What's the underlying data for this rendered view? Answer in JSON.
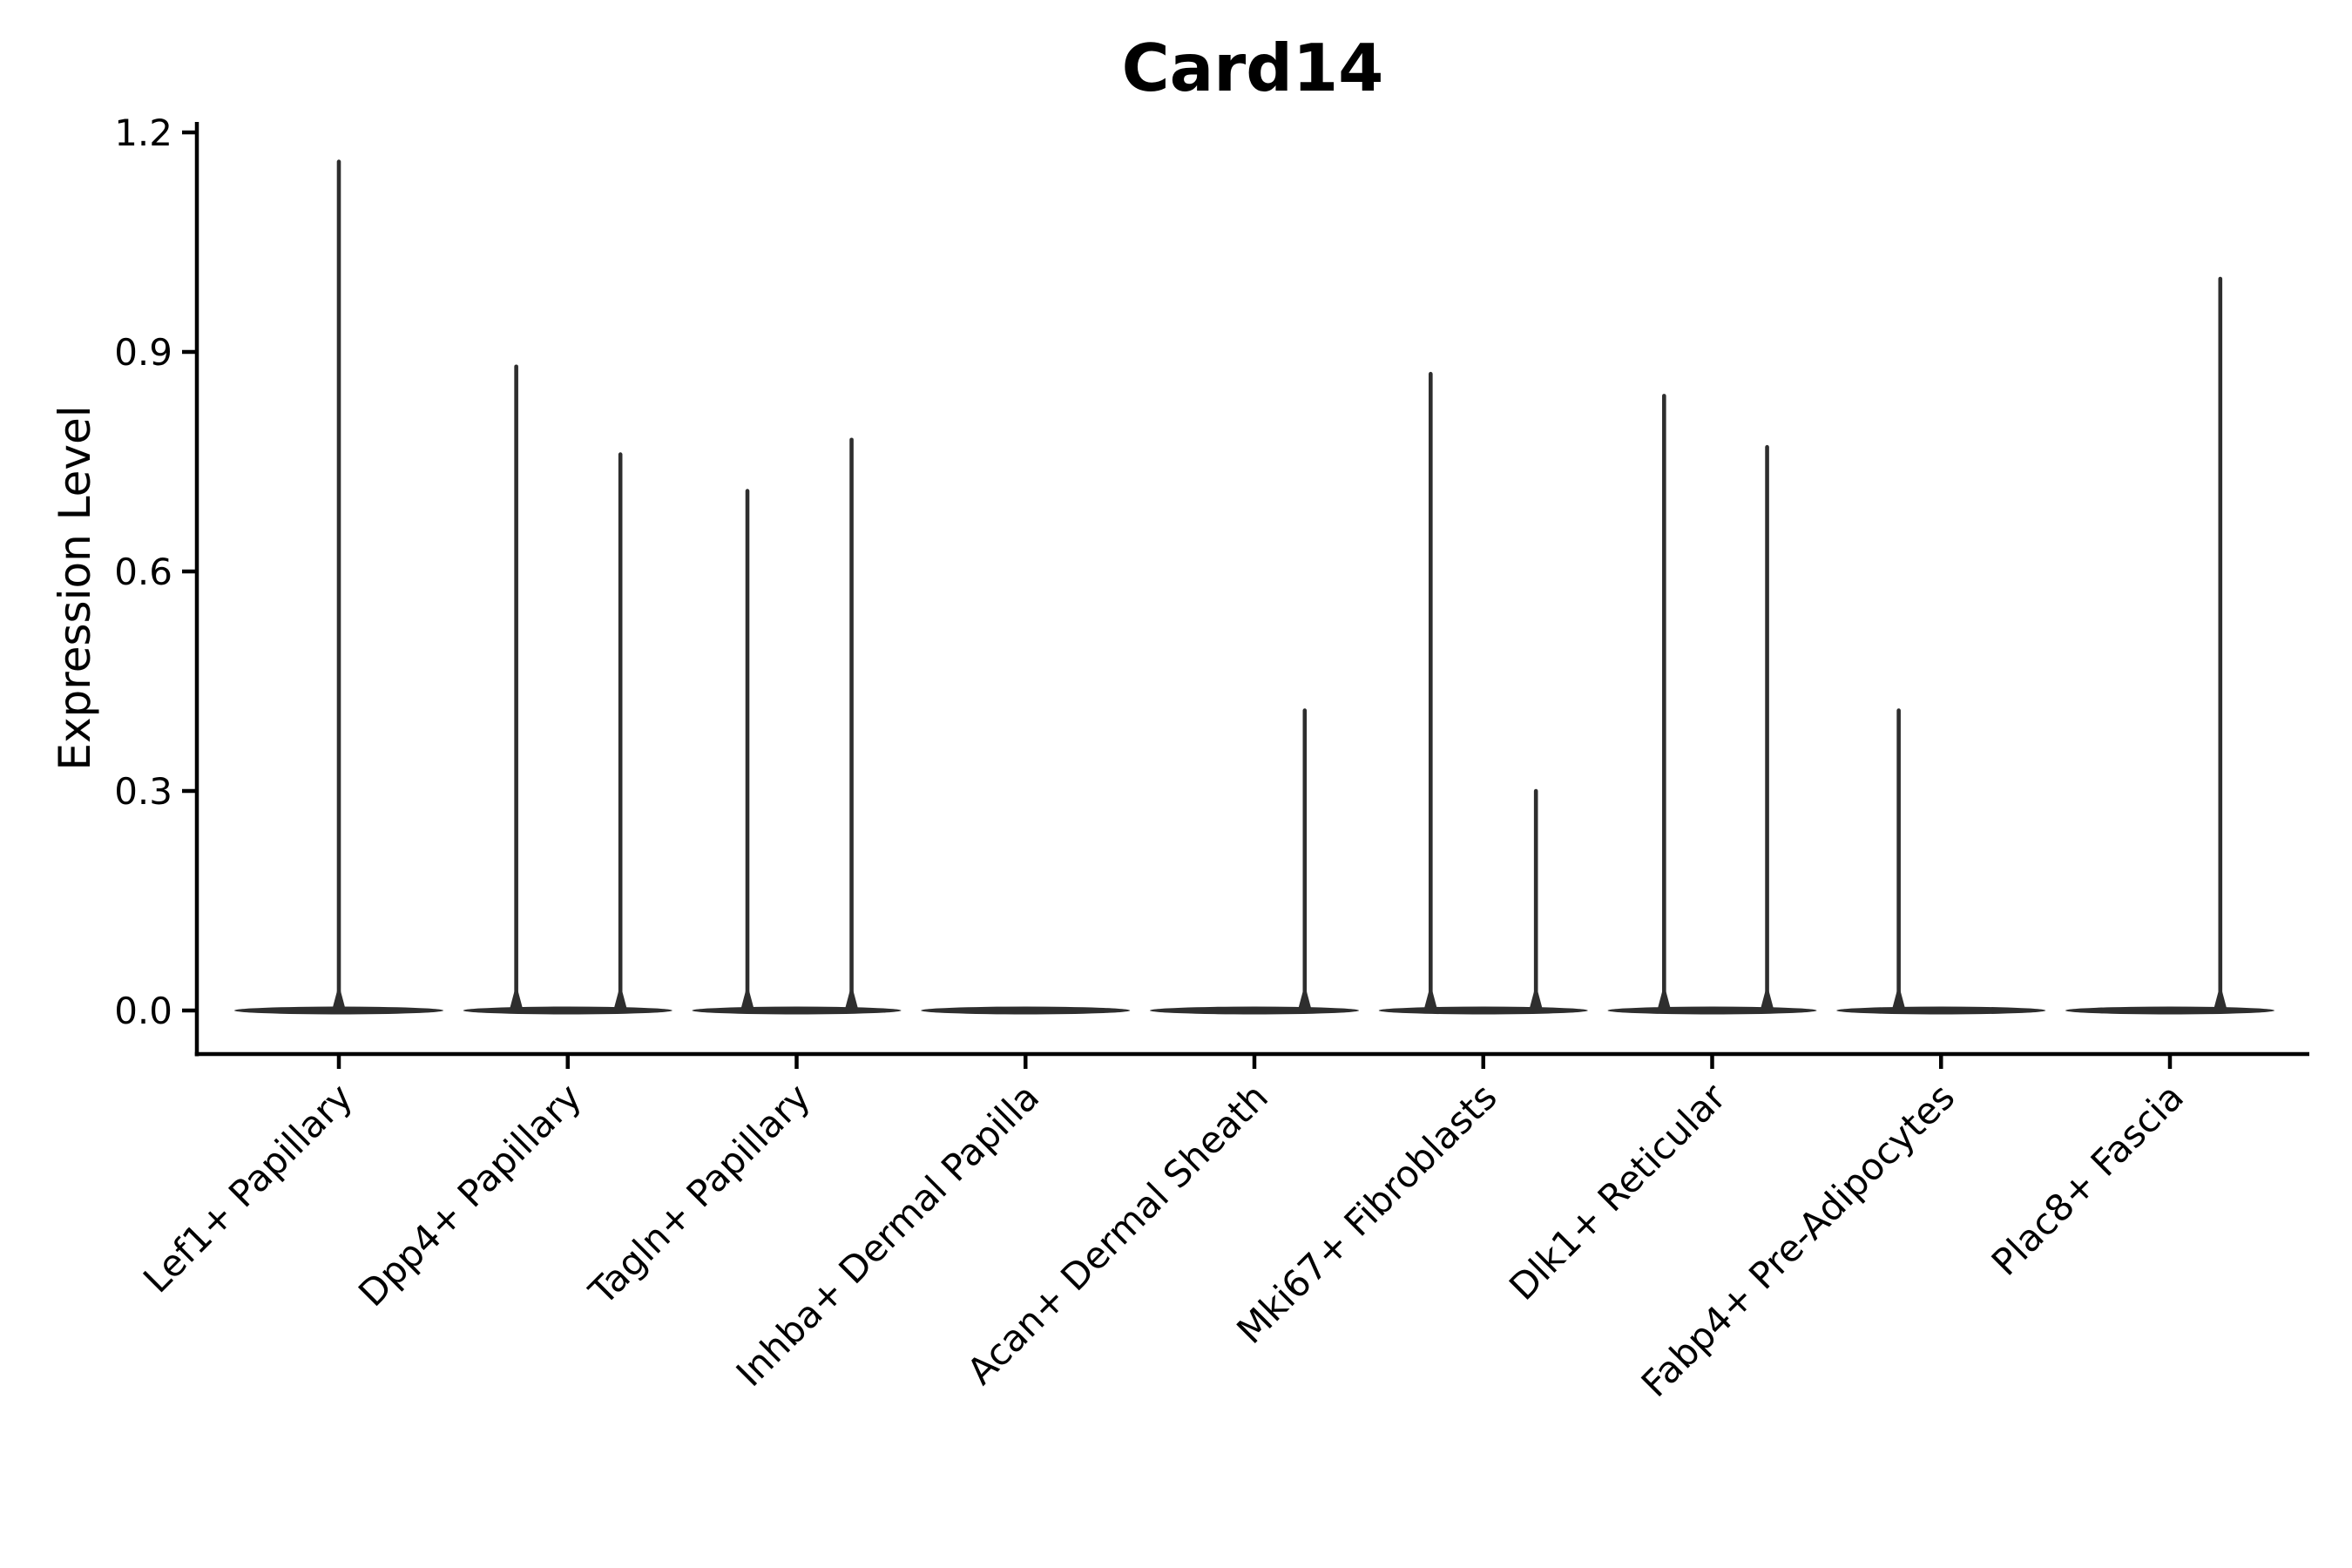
{
  "chart_data": {
    "type": "violin",
    "title": "Card14",
    "xlabel": "",
    "ylabel": "Expression Level",
    "ylim": [
      -0.08,
      1.22
    ],
    "yticks": [
      0.0,
      0.3,
      0.6,
      0.9,
      1.2
    ],
    "ytick_labels": [
      "0.0",
      "0.3",
      "0.6",
      "0.9",
      "1.2"
    ],
    "grid": false,
    "legend_position": "none",
    "categories": [
      "Lef1+ Papillary",
      "Dpp4+ Papillary",
      "Tagln+ Papillary",
      "Inhba+ Dermal Papilla",
      "Acan+ Dermal Sheath",
      "Mki67+ Fibroblasts",
      "Dlk1+ Reticular",
      "Fabp4+ Pre-Adipocytes",
      "Plac8+ Fascia"
    ],
    "series": [
      {
        "name": "Lef1+ Papillary",
        "baseline_value": 0.0,
        "spikes": [
          {
            "x_offset": 0.0,
            "value": 1.16
          }
        ]
      },
      {
        "name": "Dpp4+ Papillary",
        "baseline_value": 0.0,
        "spikes": [
          {
            "x_offset": -0.225,
            "value": 0.88
          },
          {
            "x_offset": 0.23,
            "value": 0.76
          }
        ]
      },
      {
        "name": "Tagln+ Papillary",
        "baseline_value": 0.0,
        "spikes": [
          {
            "x_offset": -0.215,
            "value": 0.71
          },
          {
            "x_offset": 0.24,
            "value": 0.78
          }
        ]
      },
      {
        "name": "Inhba+ Dermal Papilla",
        "baseline_value": 0.0,
        "spikes": []
      },
      {
        "name": "Acan+ Dermal Sheath",
        "baseline_value": 0.0,
        "spikes": [
          {
            "x_offset": 0.22,
            "value": 0.41
          }
        ]
      },
      {
        "name": "Mki67+ Fibroblasts",
        "baseline_value": 0.0,
        "spikes": [
          {
            "x_offset": -0.23,
            "value": 0.87
          },
          {
            "x_offset": 0.23,
            "value": 0.3
          }
        ]
      },
      {
        "name": "Dlk1+ Reticular",
        "baseline_value": 0.0,
        "spikes": [
          {
            "x_offset": -0.21,
            "value": 0.84
          },
          {
            "x_offset": 0.24,
            "value": 0.77
          }
        ]
      },
      {
        "name": "Fabp4+ Pre-Adipocytes",
        "baseline_value": 0.0,
        "spikes": [
          {
            "x_offset": -0.185,
            "value": 0.41
          }
        ]
      },
      {
        "name": "Plac8+ Fascia",
        "baseline_value": 0.0,
        "spikes": [
          {
            "x_offset": 0.22,
            "value": 1.0
          }
        ]
      }
    ]
  },
  "style": {
    "background_color": "#ffffff",
    "axis_color": "#000000",
    "violin_color": "#2e2e2e",
    "text_color": "#000000"
  }
}
